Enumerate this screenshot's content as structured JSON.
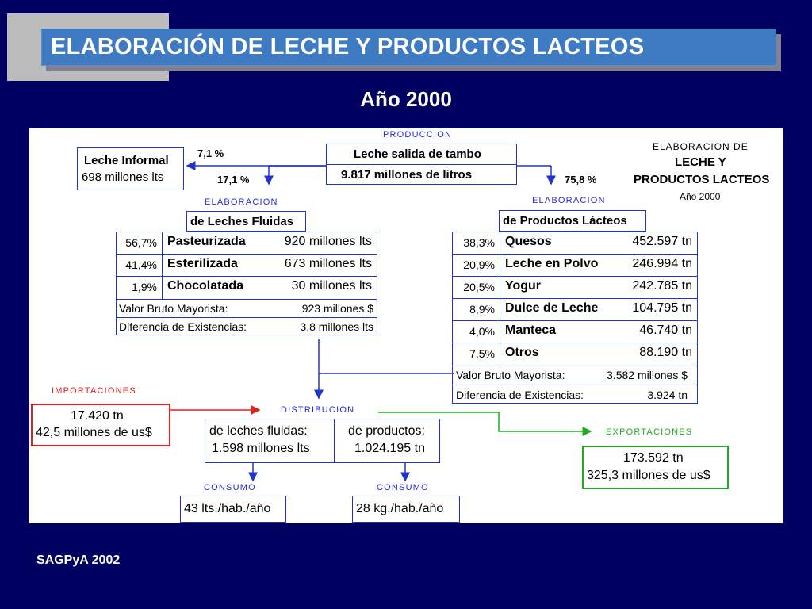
{
  "slide": {
    "title": "ELABORACIÓN DE LECHE Y PRODUCTOS LACTEOS",
    "year": "Año 2000",
    "source": "SAGPyA 2002"
  },
  "diagram": {
    "produccion_label": "PRODUCCION",
    "produccion_line1": "Leche salida de tambo",
    "produccion_line2": "9.817  millones de litros",
    "corner_title_1": "ELABORACION DE",
    "corner_title_2": "LECHE Y",
    "corner_title_3": "PRODUCTOS LACTEOS",
    "corner_title_4": "Año 2000",
    "informal_pct": "7,1 %",
    "fluidas_pct": "17,1 %",
    "productos_pct": "75,8 %",
    "informal_title": "Leche Informal",
    "informal_value": "698 millones lts",
    "elab_left_label": "ELABORACION",
    "elab_left_header": "de Leches Fluidas",
    "elab_right_label": "ELABORACION",
    "elab_right_header": "de Productos Lácteos",
    "fluidas_rows": [
      {
        "pct": "56,7%",
        "name": "Pasteurizada",
        "value": "920 millones lts"
      },
      {
        "pct": "41,4%",
        "name": "Esterilizada",
        "value": "673 millones lts"
      },
      {
        "pct": "1,9%",
        "name": "Chocolatada",
        "value": "30 millones lts"
      }
    ],
    "fluidas_vbm_label": "Valor Bruto Mayorista:",
    "fluidas_vbm_value": "923 millones $",
    "fluidas_dif_label": "Diferencia de Existencias:",
    "fluidas_dif_value": "3,8 millones lts",
    "productos_rows": [
      {
        "pct": "38,3%",
        "name": "Quesos",
        "value": "452.597 tn"
      },
      {
        "pct": "20,9%",
        "name": "Leche en Polvo",
        "value": "246.994 tn"
      },
      {
        "pct": "20,5%",
        "name": "Yogur",
        "value": "242.785 tn"
      },
      {
        "pct": "8,9%",
        "name": "Dulce de Leche",
        "value": "104.795 tn"
      },
      {
        "pct": "4,0%",
        "name": "Manteca",
        "value": "46.740 tn"
      },
      {
        "pct": "7,5%",
        "name": "Otros",
        "value": "88.190 tn"
      }
    ],
    "productos_vbm_label": "Valor Bruto Mayorista:",
    "productos_vbm_value": "3.582 millones $",
    "productos_dif_label": "Diferencia de Existencias:",
    "productos_dif_value": "3.924 tn",
    "importaciones_label": "IMPORTACIONES",
    "importaciones_line1": "17.420 tn",
    "importaciones_line2": "42,5 millones de us$",
    "distribucion_label": "DISTRIBUCION",
    "dist_left_line1": "de leches fluidas:",
    "dist_left_line2": "1.598 millones lts",
    "dist_right_line1": "de productos:",
    "dist_right_line2": "1.024.195 tn",
    "exportaciones_label": "EXPORTACIONES",
    "exportaciones_line1": "173.592 tn",
    "exportaciones_line2": "325,3 millones de us$",
    "consumo_left_label": "CONSUMO",
    "consumo_left_value": "43 lts./hab./año",
    "consumo_right_label": "CONSUMO",
    "consumo_right_value": "28 kg./hab./año"
  },
  "colors": {
    "background": "#000060",
    "title_bar": "#3f7bc2",
    "line_blue": "#2233cc",
    "label_red": "#dd2222",
    "label_green": "#22aa22"
  }
}
